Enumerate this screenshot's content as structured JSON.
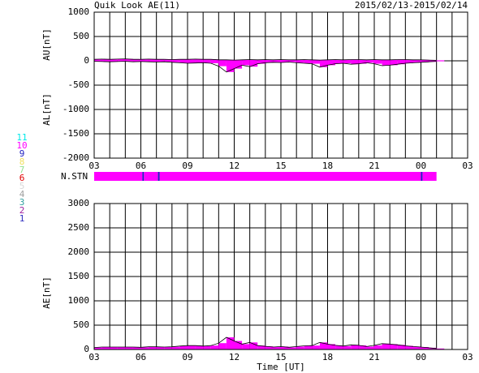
{
  "title": "Quik Look AE(11)",
  "date_range": "2015/02/13-2015/02/14",
  "chart_data": [
    {
      "type": "area_range",
      "xlim": [
        3,
        27
      ],
      "ylim": [
        -2000,
        1000
      ],
      "xgrid": [
        3,
        4,
        5,
        6,
        7,
        8,
        9,
        10,
        11,
        12,
        13,
        14,
        15,
        16,
        17,
        18,
        19,
        20,
        21,
        22,
        23,
        24,
        25,
        26,
        27
      ],
      "xticks": [
        {
          "value": 3,
          "label": "03"
        },
        {
          "value": 6,
          "label": "06"
        },
        {
          "value": 9,
          "label": "09"
        },
        12,
        15,
        18,
        21,
        {
          "value": 24,
          "label": "00"
        },
        {
          "value": 27,
          "label": "03"
        }
      ],
      "yticks": [
        1000,
        500,
        0,
        -500,
        -1000,
        -1500,
        -2000
      ],
      "ylabels": [
        "AU[nT]",
        "AL[nT]"
      ],
      "fill_color": "#ff00ff",
      "line_color": "#000000",
      "x": [
        3,
        3.5,
        4,
        4.5,
        5,
        5.5,
        6,
        6.5,
        7,
        7.5,
        8,
        8.5,
        9,
        9.5,
        10,
        10.5,
        11,
        11.5,
        12,
        12.5,
        13,
        13.5,
        14,
        14.5,
        15,
        15.5,
        16,
        16.5,
        17,
        17.5,
        18,
        18.5,
        19,
        19.5,
        20,
        20.5,
        21,
        21.5,
        22,
        22.5,
        23,
        23.5,
        24,
        24.5,
        25
      ],
      "series": [
        {
          "name": "AU",
          "values": [
            30,
            35,
            30,
            35,
            40,
            30,
            30,
            35,
            30,
            30,
            25,
            30,
            30,
            35,
            30,
            30,
            20,
            20,
            15,
            20,
            25,
            20,
            25,
            20,
            25,
            20,
            20,
            25,
            20,
            15,
            20,
            25,
            20,
            25,
            25,
            20,
            25,
            20,
            20,
            25,
            25,
            20,
            20,
            15,
            10
          ]
        },
        {
          "name": "AL",
          "values": [
            -10,
            -15,
            -20,
            -15,
            -10,
            -20,
            -15,
            -20,
            -25,
            -20,
            -30,
            -40,
            -50,
            -45,
            -40,
            -50,
            -110,
            -230,
            -160,
            -90,
            -120,
            -60,
            -40,
            -30,
            -35,
            -25,
            -40,
            -50,
            -60,
            -130,
            -90,
            -60,
            -50,
            -70,
            -60,
            -40,
            -60,
            -100,
            -90,
            -70,
            -50,
            -40,
            -30,
            -20,
            -10
          ]
        }
      ]
    },
    {
      "type": "area",
      "xlim": [
        3,
        27
      ],
      "ylim": [
        0,
        3000
      ],
      "xlabel": "Time [UT]",
      "xgrid": [
        3,
        4,
        5,
        6,
        7,
        8,
        9,
        10,
        11,
        12,
        13,
        14,
        15,
        16,
        17,
        18,
        19,
        20,
        21,
        22,
        23,
        24,
        25,
        26,
        27
      ],
      "xticks": [
        {
          "value": 3,
          "label": "03"
        },
        {
          "value": 6,
          "label": "06"
        },
        {
          "value": 9,
          "label": "09"
        },
        12,
        15,
        18,
        21,
        {
          "value": 24,
          "label": "00"
        },
        {
          "value": 27,
          "label": "03"
        }
      ],
      "yticks": [
        3000,
        2500,
        2000,
        1500,
        1000,
        500,
        0
      ],
      "ylabels": [
        "AE[nT]"
      ],
      "fill_color": "#ff00ff",
      "line_color": "#000000",
      "x": [
        3,
        3.5,
        4,
        4.5,
        5,
        5.5,
        6,
        6.5,
        7,
        7.5,
        8,
        8.5,
        9,
        9.5,
        10,
        10.5,
        11,
        11.5,
        12,
        12.5,
        13,
        13.5,
        14,
        14.5,
        15,
        15.5,
        16,
        16.5,
        17,
        17.5,
        18,
        18.5,
        19,
        19.5,
        20,
        20.5,
        21,
        21.5,
        22,
        22.5,
        23,
        23.5,
        24,
        24.5,
        25
      ],
      "series": [
        {
          "name": "AE",
          "values": [
            40,
            50,
            50,
            50,
            50,
            50,
            45,
            55,
            55,
            50,
            55,
            70,
            80,
            80,
            70,
            80,
            130,
            250,
            175,
            110,
            145,
            80,
            65,
            50,
            60,
            45,
            60,
            75,
            80,
            145,
            110,
            85,
            70,
            95,
            85,
            60,
            85,
            120,
            110,
            95,
            75,
            60,
            50,
            35,
            20
          ]
        }
      ]
    }
  ],
  "n_stn": {
    "label": "N.STN",
    "edges": [
      3,
      6.1,
      6.2,
      7.1,
      7.2,
      24.0,
      24.1,
      25
    ],
    "values": [
      10,
      9,
      10,
      9,
      10,
      9,
      10
    ]
  },
  "station_legend": [
    {
      "label": "11",
      "color": "#00e8e8"
    },
    {
      "label": "10",
      "color": "#ff00ff"
    },
    {
      "label": "9",
      "color": "#2020c0"
    },
    {
      "label": "8",
      "color": "#f0e060"
    },
    {
      "label": "7",
      "color": "#90e090"
    },
    {
      "label": "6",
      "color": "#e00000"
    },
    {
      "label": "5",
      "color": "#d8d8d8"
    },
    {
      "label": "4",
      "color": "#a0a0a0"
    },
    {
      "label": "3",
      "color": "#30a0a0"
    },
    {
      "label": "2",
      "color": "#a020a0"
    },
    {
      "label": "1",
      "color": "#3030c0"
    }
  ]
}
